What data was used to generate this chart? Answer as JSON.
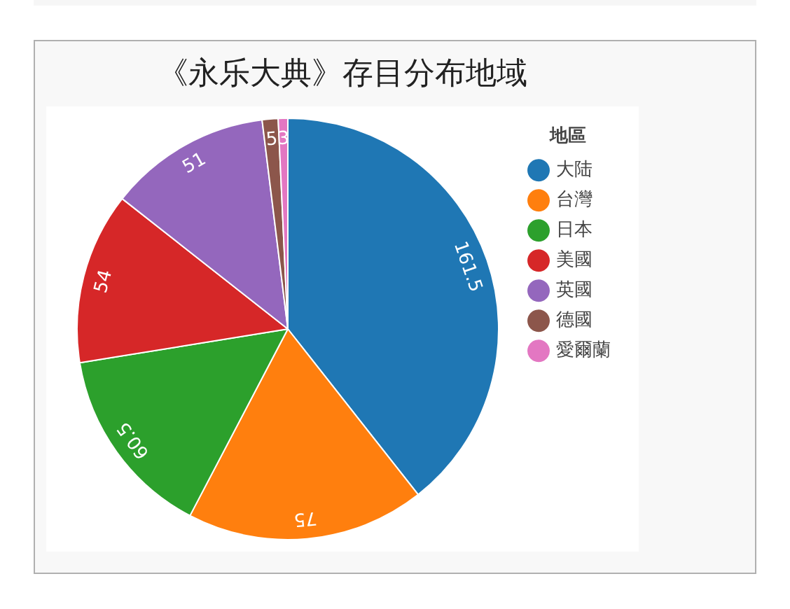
{
  "chart_data": {
    "type": "pie",
    "title": "《永乐大典》存目分布地域",
    "legend_title": "地區",
    "legend": "right",
    "data_labels": true,
    "categories": [
      "大陆",
      "台灣",
      "日本",
      "美國",
      "英國",
      "德國",
      "愛爾蘭"
    ],
    "values": [
      161.5,
      75,
      60.5,
      54,
      51,
      5,
      3
    ],
    "colors": [
      "#1f77b4",
      "#ff7f0e",
      "#2ca02c",
      "#d62728",
      "#9467bd",
      "#8c564b",
      "#e377c2"
    ]
  }
}
